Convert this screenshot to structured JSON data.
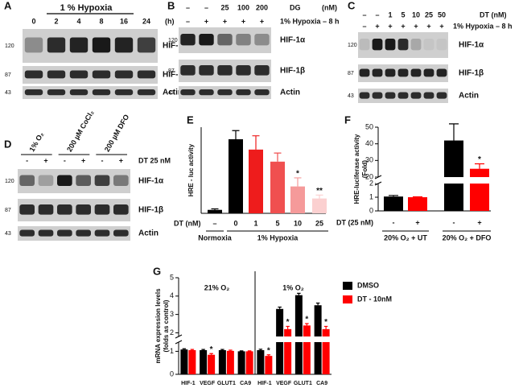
{
  "blots": [
    {
      "label": "A",
      "title": "1 % Hypoxia",
      "rows": [
        [
          "0",
          "2",
          "4",
          "8",
          "16",
          "24"
        ]
      ],
      "row_labels": [
        "(h)"
      ],
      "bands": [
        {
          "mw": "120",
          "protein": "HIF-1α"
        },
        {
          "mw": "87",
          "protein": "HIF-1β"
        },
        {
          "mw": "43",
          "protein": "Actin"
        }
      ]
    },
    {
      "label": "B",
      "rows": [
        [
          "–",
          "–",
          "25",
          "100",
          "200"
        ],
        [
          "–",
          "+",
          "+",
          "+",
          "+"
        ]
      ],
      "row_labels": [
        "DG",
        "1% Hypoxia – 8 h"
      ],
      "unit": "(nM)",
      "bands": [
        {
          "mw": "120",
          "protein": "HIF-1α"
        },
        {
          "mw": "87",
          "protein": "HIF-1β"
        },
        {
          "mw": "43",
          "protein": "Actin"
        }
      ]
    },
    {
      "label": "C",
      "rows": [
        [
          "–",
          "–",
          "1",
          "5",
          "10",
          "25",
          "50"
        ],
        [
          "–",
          "+",
          "+",
          "+",
          "+",
          "+",
          "+"
        ]
      ],
      "row_labels": [
        "DT (nM)",
        "1% Hypoxia – 8 h"
      ],
      "bands": [
        {
          "mw": "120",
          "protein": "HIF-1α"
        },
        {
          "mw": "87",
          "protein": "HIF-1β"
        },
        {
          "mw": "43",
          "protein": "Actin"
        }
      ]
    },
    {
      "label": "D",
      "conditions": [
        "1% O₂",
        "200 µM CoCl₂",
        "200 µM DFO"
      ],
      "rows": [
        [
          "-",
          "+",
          "-",
          "+",
          "-",
          "+"
        ]
      ],
      "row_labels": [
        "DT 25 nM"
      ],
      "bands": [
        {
          "mw": "120",
          "protein": "HIF-1α"
        },
        {
          "mw": "87",
          "protein": "HIF-1β"
        },
        {
          "mw": "43",
          "protein": "Actin"
        }
      ]
    }
  ],
  "chart_data": [
    {
      "type": "bar",
      "panel": "E",
      "ylabel": [
        "HRE - luc activity"
      ],
      "xlabel": "DT (nM)",
      "categories": [
        "–",
        "0",
        "1",
        "5",
        "10",
        "25"
      ],
      "groups": [
        "Normoxia",
        "1% Hypoxia"
      ],
      "values": [
        1,
        21.5,
        18.5,
        15,
        7.8,
        4.3
      ],
      "errors": [
        0.3,
        2.5,
        4,
        2.5,
        2.5,
        1
      ],
      "colors": [
        "#000000",
        "#000000",
        "#ee1c1c",
        "#f05050",
        "#f59a9a",
        "#fbd0d0"
      ],
      "annotations": [
        null,
        null,
        null,
        null,
        "*",
        "**"
      ],
      "ylim": [
        0,
        25
      ]
    },
    {
      "type": "bar",
      "panel": "F",
      "ylabel": [
        "HRE-luciferase activity",
        "(Fold)"
      ],
      "xlabel": "DT (25 nM)",
      "categories": [
        "-",
        "+",
        "-",
        "+"
      ],
      "groups": [
        "20% O₂ + UT",
        "20% O₂ + DFO"
      ],
      "values": [
        1.05,
        1.0,
        42,
        25
      ],
      "errors": [
        0.08,
        0.03,
        10,
        3
      ],
      "colors": [
        "#000000",
        "#ff0000",
        "#000000",
        "#ff0000"
      ],
      "annotations": [
        null,
        null,
        null,
        "*"
      ],
      "ylim": [
        0,
        50
      ],
      "ybreak": [
        2,
        20
      ],
      "yticks": [
        0,
        1,
        2,
        20,
        30,
        40,
        50
      ]
    },
    {
      "type": "grouped-bar",
      "panel": "G",
      "ylabel": [
        "mRNA expression levels",
        "(folds as control)"
      ],
      "categories": [
        "HIF-1",
        "VEGF",
        "GLUT1",
        "CA9",
        "HIF-1",
        "VEGF",
        "GLUT1",
        "CA9"
      ],
      "groups": [
        "21% O₂",
        "1% O₂"
      ],
      "series": [
        {
          "name": "DMSO",
          "color": "#000000",
          "values": [
            1.08,
            1.05,
            1.05,
            1.0,
            1.05,
            3.3,
            4.05,
            3.5
          ],
          "errors": [
            0.03,
            0.03,
            0.03,
            0.02,
            0.04,
            0.1,
            0.1,
            0.12
          ],
          "annotations": [
            null,
            null,
            null,
            null,
            null,
            null,
            null,
            null
          ]
        },
        {
          "name": "DT - 10nM",
          "color": "#ff0000",
          "values": [
            1.05,
            0.85,
            1.02,
            1.0,
            0.8,
            2.2,
            2.4,
            2.2
          ],
          "errors": [
            0.03,
            0.05,
            0.03,
            0.02,
            0.05,
            0.15,
            0.1,
            0.15
          ],
          "annotations": [
            null,
            "*",
            null,
            null,
            "*",
            "*",
            "*",
            "*"
          ]
        }
      ],
      "ylim": [
        0,
        5
      ],
      "ybreak": [
        1.4,
        1.8
      ],
      "yticks": [
        0,
        1,
        2,
        3,
        4,
        5
      ],
      "legend": "upper right"
    }
  ]
}
